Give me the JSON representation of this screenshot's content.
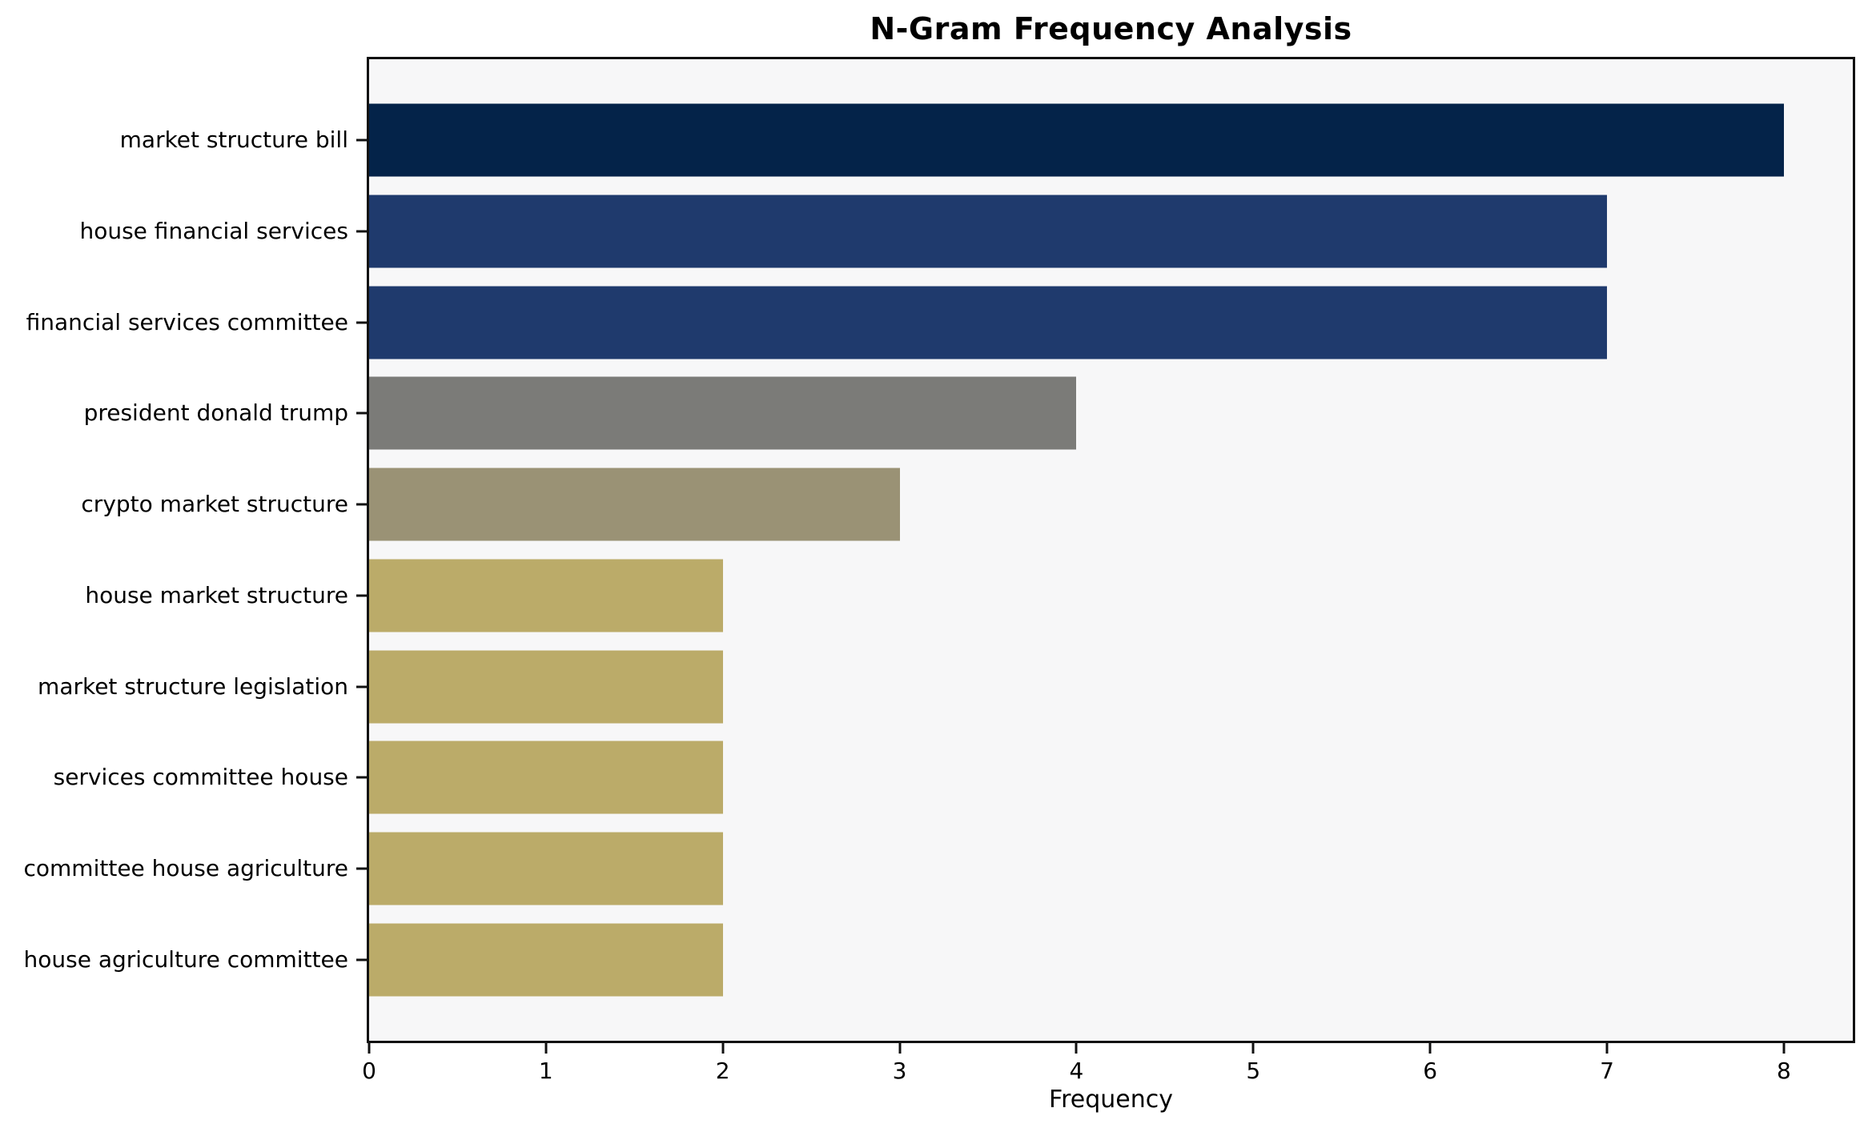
{
  "chart_data": {
    "type": "bar",
    "orientation": "horizontal",
    "title": "N-Gram Frequency Analysis",
    "xlabel": "Frequency",
    "ylabel": "",
    "categories": [
      "market structure bill",
      "house financial services",
      "financial services committee",
      "president donald trump",
      "crypto market structure",
      "house market structure",
      "market structure legislation",
      "services committee house",
      "committee house agriculture",
      "house agriculture committee"
    ],
    "values": [
      8,
      7,
      7,
      4,
      3,
      2,
      2,
      2,
      2,
      2
    ],
    "bar_colors": [
      "#042349",
      "#1f3a6d",
      "#1f3a6d",
      "#7b7b78",
      "#9a9275",
      "#bbab69",
      "#bbab69",
      "#bbab69",
      "#bbab69",
      "#bbab69"
    ],
    "xticks": [
      0,
      1,
      2,
      3,
      4,
      5,
      6,
      7,
      8
    ],
    "xlim": [
      0,
      8.39
    ],
    "bar_height_fraction": 0.8,
    "outer_pad_units": 0.89,
    "grid": false,
    "legend_position": "none",
    "plot_background": "#f7f7f8",
    "figure_background": "#ffffff",
    "axis_color": "#111111",
    "text_color": "#000000"
  }
}
